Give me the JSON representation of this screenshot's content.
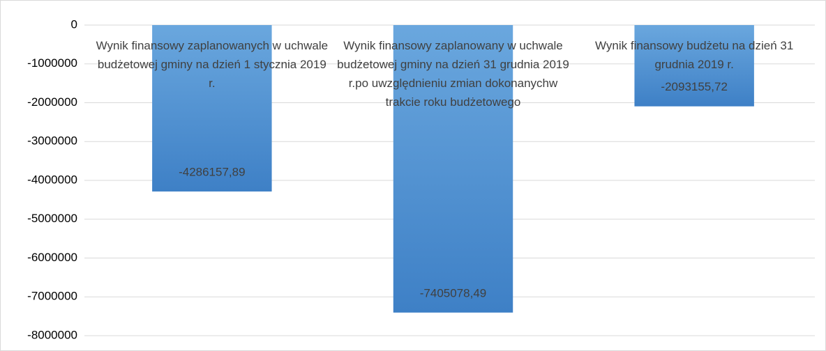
{
  "chart_data": {
    "type": "bar",
    "categories": [
      "Wynik finansowy zaplanowanych w uchwale budżetowej gminy na dzień 1 stycznia 2019 r.",
      "Wynik finansowy zaplanowany w uchwale budżetowej gminy na dzień 31 grudnia 2019 r.po uwzględnieniu zmian dokonanychw trakcie roku budżetowego",
      "Wynik finansowy budżetu na dzień 31 grudnia 2019 r."
    ],
    "values": [
      -4286157.89,
      -7405078.49,
      -2093155.72
    ],
    "value_labels": [
      "-4286157,89",
      "-7405078,49",
      "-2093155,72"
    ],
    "color": "#5b9bd5",
    "ylim": [
      -8000000,
      0
    ],
    "yticks": [
      0,
      -1000000,
      -2000000,
      -3000000,
      -4000000,
      -5000000,
      -6000000,
      -7000000,
      -8000000
    ],
    "grid": true
  }
}
